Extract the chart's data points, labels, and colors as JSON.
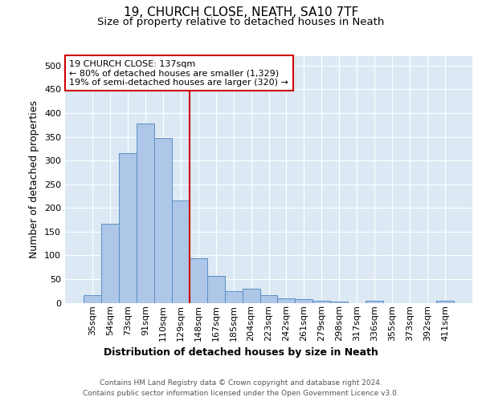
{
  "title1": "19, CHURCH CLOSE, NEATH, SA10 7TF",
  "title2": "Size of property relative to detached houses in Neath",
  "xlabel": "Distribution of detached houses by size in Neath",
  "ylabel": "Number of detached properties",
  "categories": [
    "35sqm",
    "54sqm",
    "73sqm",
    "91sqm",
    "110sqm",
    "129sqm",
    "148sqm",
    "167sqm",
    "185sqm",
    "204sqm",
    "223sqm",
    "242sqm",
    "261sqm",
    "279sqm",
    "298sqm",
    "317sqm",
    "336sqm",
    "355sqm",
    "373sqm",
    "392sqm",
    "411sqm"
  ],
  "values": [
    16,
    167,
    315,
    378,
    347,
    215,
    94,
    56,
    25,
    29,
    16,
    10,
    8,
    5,
    2,
    0,
    4,
    0,
    0,
    0,
    4
  ],
  "bar_color": "#aec6e8",
  "bar_edge_color": "#5a8fc2",
  "vline_color": "#cc0000",
  "annotation_box_text": "19 CHURCH CLOSE: 137sqm\n← 80% of detached houses are smaller (1,329)\n19% of semi-detached houses are larger (320) →",
  "annotation_box_color": "#cc0000",
  "bg_color": "#dce9f5",
  "ylim": [
    0,
    520
  ],
  "yticks": [
    0,
    50,
    100,
    150,
    200,
    250,
    300,
    350,
    400,
    450,
    500
  ],
  "footer": "Contains HM Land Registry data © Crown copyright and database right 2024.\nContains public sector information licensed under the Open Government Licence v3.0.",
  "grid_color": "#ffffff",
  "title1_fontsize": 11,
  "title2_fontsize": 9.5,
  "xlabel_fontsize": 9,
  "ylabel_fontsize": 9,
  "annot_fontsize": 8,
  "footer_fontsize": 6.5,
  "tick_fontsize": 8
}
